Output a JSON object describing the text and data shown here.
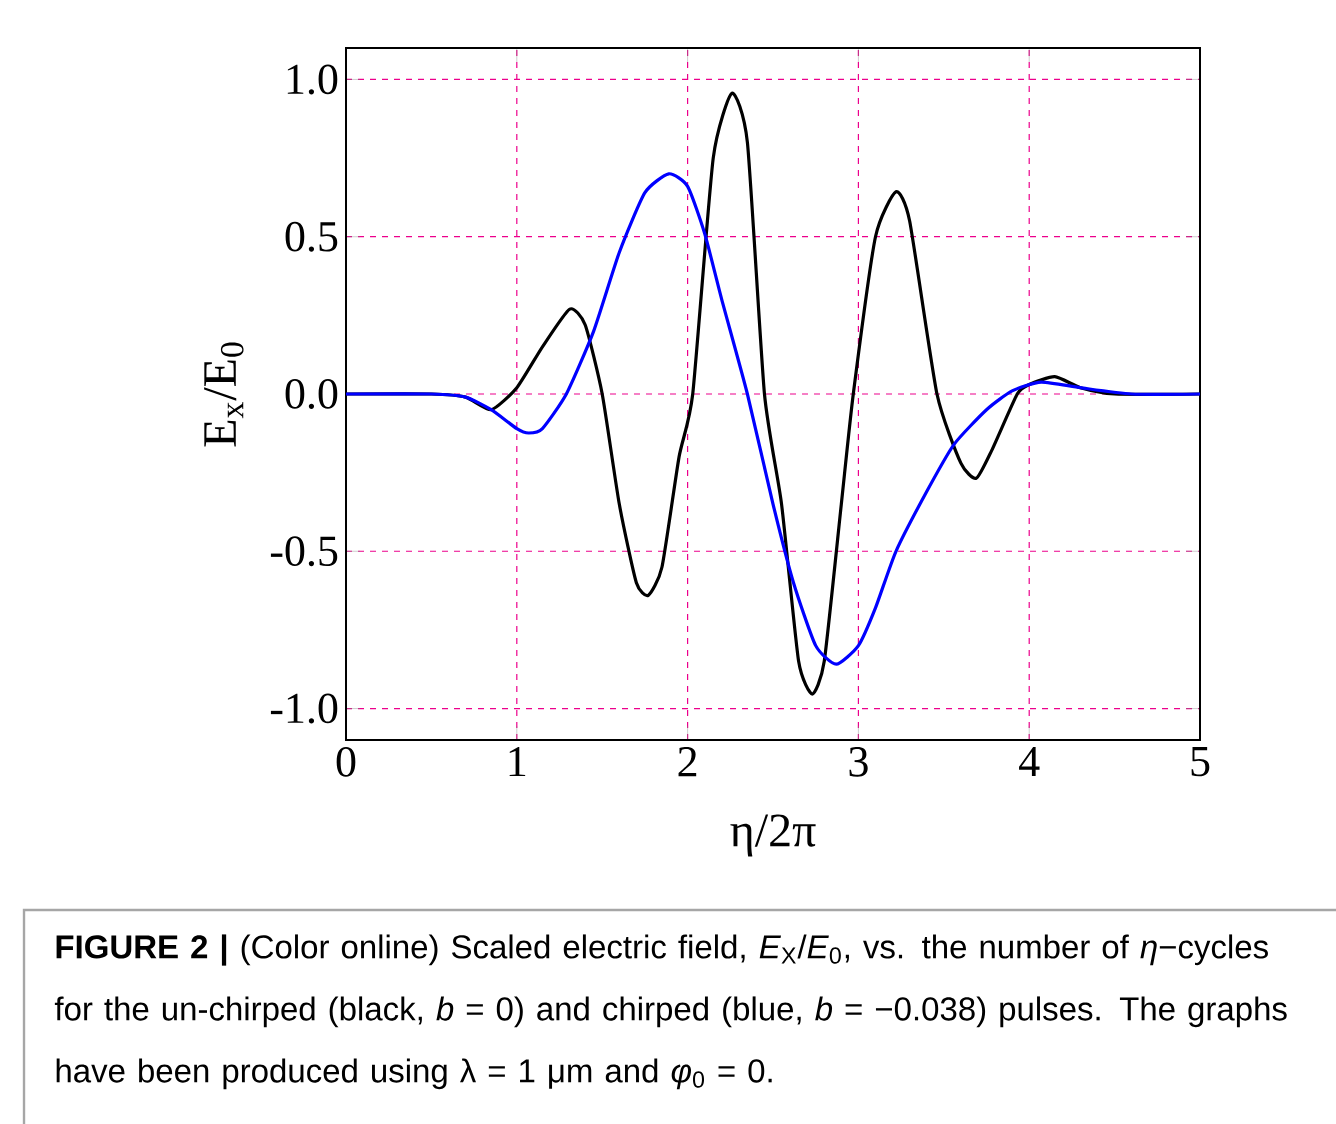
{
  "chart_data": {
    "type": "line",
    "xlabel": "η/2π",
    "ylabel": "E$_{x}$/E$_{0}$",
    "xlim": [
      0,
      5
    ],
    "ylim": [
      -1.1,
      1.1
    ],
    "xticks": [
      0,
      1,
      2,
      3,
      4,
      5
    ],
    "yticks": [
      {
        "value": -1,
        "label": "-1.0"
      },
      {
        "value": -0.5,
        "label": "-0.5"
      },
      {
        "value": 0,
        "label": "0.0"
      },
      {
        "value": 0.5,
        "label": "0.5"
      },
      {
        "value": 1,
        "label": "1.0"
      }
    ],
    "grid": true,
    "series": [
      {
        "color": "#000000",
        "x": [
          0,
          0.5,
          0.7,
          0.85,
          1.0,
          1.15,
          1.31,
          1.4,
          1.5,
          1.6,
          1.7,
          1.77,
          1.85,
          1.95,
          2.03,
          2.15,
          2.26,
          2.35,
          2.45,
          2.55,
          2.65,
          2.73,
          2.8,
          2.9,
          2.97,
          3.1,
          3.22,
          3.3,
          3.46,
          3.6,
          3.69,
          3.78,
          3.93,
          4.0,
          4.15,
          4.3,
          4.5,
          5
        ],
        "values": [
          0,
          0,
          -0.01,
          -0.05,
          0.02,
          0.15,
          0.27,
          0.22,
          0.0,
          -0.35,
          -0.6,
          -0.64,
          -0.55,
          -0.2,
          0.0,
          0.75,
          0.956,
          0.8,
          0.0,
          -0.35,
          -0.85,
          -0.954,
          -0.85,
          -0.35,
          0.0,
          0.5,
          0.643,
          0.55,
          0.0,
          -0.22,
          -0.268,
          -0.18,
          0.0,
          0.03,
          0.055,
          0.02,
          0.0,
          0
        ]
      },
      {
        "color": "#0000ff",
        "x": [
          0,
          0.5,
          0.7,
          0.85,
          1.0,
          1.07,
          1.15,
          1.29,
          1.45,
          1.6,
          1.75,
          1.89,
          2.0,
          2.1,
          2.2,
          2.35,
          2.5,
          2.62,
          2.75,
          2.87,
          3.0,
          3.1,
          3.22,
          3.4,
          3.56,
          3.75,
          3.9,
          4.07,
          4.3,
          4.6,
          5
        ],
        "values": [
          0,
          0,
          -0.01,
          -0.05,
          -0.11,
          -0.124,
          -0.11,
          0.0,
          0.2,
          0.45,
          0.64,
          0.7,
          0.66,
          0.51,
          0.3,
          0.0,
          -0.35,
          -0.6,
          -0.8,
          -0.859,
          -0.8,
          -0.68,
          -0.5,
          -0.31,
          -0.16,
          -0.05,
          0.01,
          0.038,
          0.02,
          0.0,
          0
        ]
      }
    ],
    "annotations": [
      "**FIGURE 2 |** (Color online) Scaled electric field, *E*$_{X}$/*E*$_{0}$, vs. the number of *η*−cycles for the un-chirped (black, *b* = 0) and chirped (blue, *b* = −0.038) pulses. The graphs have been produced using λ = 1 μm and *φ*$_{0}$ = 0."
    ]
  }
}
